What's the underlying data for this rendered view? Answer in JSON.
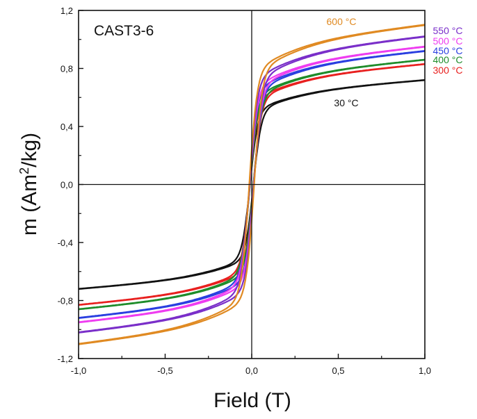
{
  "chart_data": {
    "type": "line",
    "annotation": "CAST3-6",
    "xlabel": "Field (T)",
    "ylabel": {
      "prefix": "m (Am",
      "sup": "2",
      "suffix": "/kg)"
    },
    "xlim": [
      -1.0,
      1.0
    ],
    "ylim": [
      -1.2,
      1.2
    ],
    "x_ticks": [
      -1.0,
      -0.5,
      0.0,
      0.5,
      1.0
    ],
    "x_tick_labels": [
      "-1,0",
      "-0,5",
      "0,0",
      "0,5",
      "1,0"
    ],
    "y_ticks": [
      -1.2,
      -0.8,
      -0.4,
      0.0,
      0.4,
      0.8,
      1.2
    ],
    "y_tick_labels": [
      "-1,2",
      "-0,8",
      "-0,4",
      "0,0",
      "0,4",
      "0,8",
      "1,2"
    ],
    "reference_lines": {
      "x": 0.0,
      "y": 0.0
    },
    "grid": false,
    "legend": "direct labels at right",
    "series": [
      {
        "name": "30 °C",
        "color": "#111111",
        "saturation_at_1T": 0.72,
        "value_at_minus_1T": -0.72,
        "hysteresis_offset": 0.01
      },
      {
        "name": "300 °C",
        "color": "#e8201f",
        "saturation_at_1T": 0.83,
        "value_at_minus_1T": -0.8,
        "hysteresis_offset": 0.01
      },
      {
        "name": "400 °C",
        "color": "#1e8c2a",
        "saturation_at_1T": 0.86,
        "value_at_minus_1T": -0.84,
        "hysteresis_offset": 0.01
      },
      {
        "name": "450 °C",
        "color": "#2a3fe0",
        "saturation_at_1T": 0.92,
        "value_at_minus_1T": -0.87,
        "hysteresis_offset": 0.012
      },
      {
        "name": "500 °C",
        "color": "#ee3df0",
        "saturation_at_1T": 0.95,
        "value_at_minus_1T": -0.91,
        "hysteresis_offset": 0.012
      },
      {
        "name": "550 °C",
        "color": "#7a2fc9",
        "saturation_at_1T": 1.02,
        "value_at_minus_1T": -1.0,
        "hysteresis_offset": 0.013
      },
      {
        "name": "600 °C",
        "color": "#e08a22",
        "saturation_at_1T": 1.1,
        "value_at_minus_1T": -1.06,
        "hysteresis_offset": 0.014
      }
    ]
  }
}
